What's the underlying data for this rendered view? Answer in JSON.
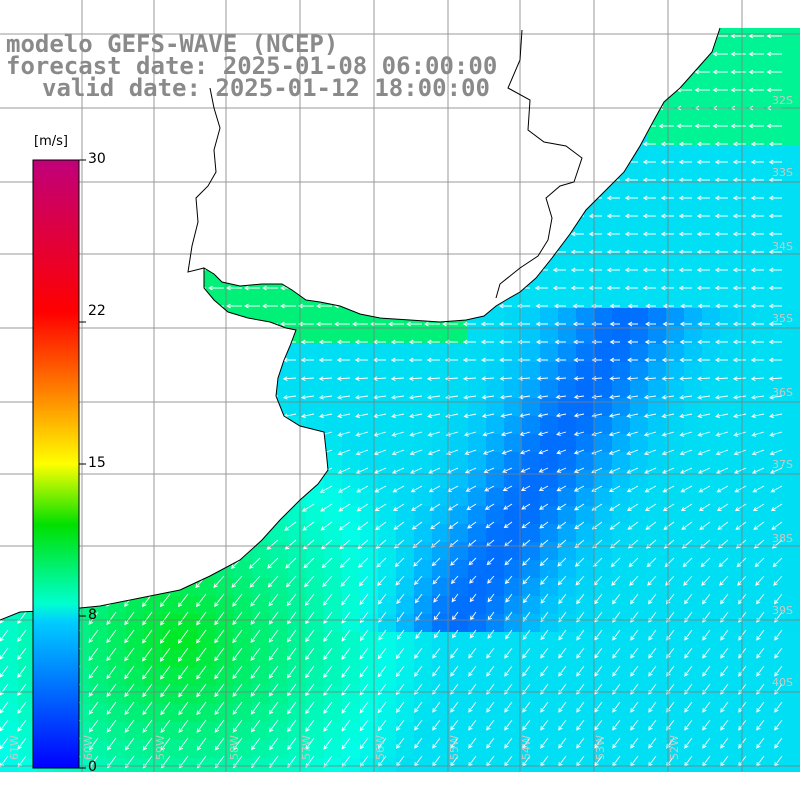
{
  "title": {
    "line1": "modelo GEFS-WAVE (NCEP)",
    "line2": "forecast date: 2025-01-08 06:00:00",
    "line3": "valid date: 2025-01-12 18:00:00"
  },
  "colorbar": {
    "unit": "[m/s]",
    "ticks": [
      "30",
      "22",
      "15",
      "8",
      "0"
    ],
    "min": 0,
    "max": 30
  },
  "grid": {
    "lon_labels": [
      "61W",
      "60W",
      "59W",
      "58W",
      "57W",
      "56W",
      "55W",
      "54W",
      "53W",
      "52W"
    ],
    "lat_labels": [
      "32S",
      "33S",
      "34S",
      "35S",
      "36S",
      "37S",
      "38S",
      "39S",
      "40S"
    ]
  },
  "colors": {
    "title_text": "#8a8a8a",
    "land": "#ffffff",
    "coast": "#000000",
    "grid_lines": "#808080",
    "arrows": "#ffffff"
  },
  "wind_field": {
    "description_units": "m/s",
    "typical_speed_range": [
      4,
      12
    ]
  }
}
